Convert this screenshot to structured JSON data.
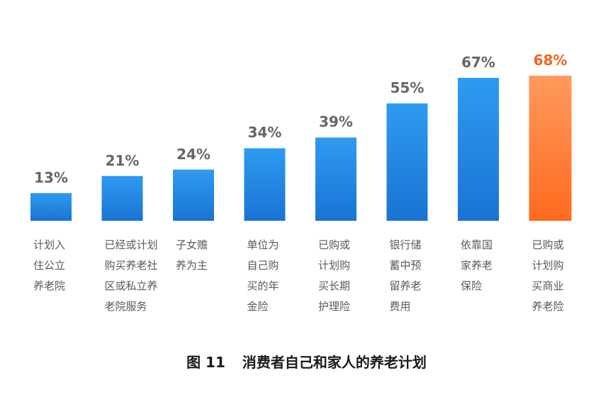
{
  "chart_data": {
    "type": "bar",
    "title": "",
    "xlabel": "",
    "ylabel": "",
    "ylim": [
      0,
      72
    ],
    "unit": "%",
    "categories": [
      "计划入\n住公立\n养老院",
      "已经或计划\n购买养老社\n区或私立养\n老院服务",
      "子女赡\n养为主",
      "单位为\n自己购\n买的年\n金险",
      "已购或\n计划购\n买长期\n护理险",
      "银行储\n蓄中预\n留养老\n费用",
      "依靠国\n家养老\n保险",
      "已购或\n计划购\n买商业\n养老险"
    ],
    "values": [
      13,
      21,
      24,
      34,
      39,
      55,
      67,
      68
    ],
    "value_labels": [
      "13%",
      "21%",
      "24%",
      "34%",
      "39%",
      "55%",
      "67%",
      "68%"
    ],
    "highlight_index": 7,
    "colors": {
      "bar_top": "#2e9bf0",
      "bar_bottom": "#1a73d4",
      "highlight_top": "#ff9a5c",
      "highlight_bottom": "#ff6a1f",
      "label": "#666666",
      "highlight_label": "#f26522"
    },
    "grid": false,
    "legend": "none"
  },
  "caption": {
    "figure_number": "图 11",
    "text": "消费者自己和家人的养老计划"
  }
}
